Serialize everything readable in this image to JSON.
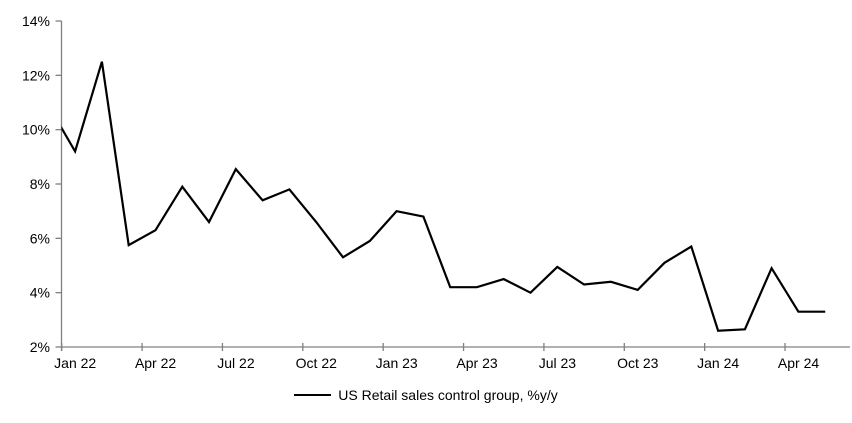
{
  "chart_data": {
    "type": "line",
    "title": "",
    "legend_position": "bottom",
    "grid": false,
    "background_color": "#ffffff",
    "axis_color": "#808080",
    "text_color": "#000000",
    "line_color": "#000000",
    "ylim": [
      2,
      14
    ],
    "y_axis": {
      "min": 2,
      "max": 14,
      "tick_step": 2,
      "tick_values": [
        14,
        12,
        10,
        8,
        6,
        4,
        2
      ],
      "tick_labels": [
        "14%",
        "12%",
        "10%",
        "8%",
        "6%",
        "4%",
        "2%"
      ]
    },
    "x_axis": {
      "tick_labels": [
        "Jan 22",
        "Apr 22",
        "Jul 22",
        "Oct 22",
        "Jan 23",
        "Apr 23",
        "Jul 23",
        "Oct 23",
        "Jan 24",
        "Apr 24"
      ]
    },
    "series": [
      {
        "name": "US Retail sales control group, %y/y",
        "points": [
          {
            "label": "Dec 21",
            "value": 10.9,
            "partially_clipped": true
          },
          {
            "label": "Jan 22",
            "value": 9.2
          },
          {
            "label": "Feb 22",
            "value": 12.5
          },
          {
            "label": "Mar 22",
            "value": 5.75
          },
          {
            "label": "Apr 22",
            "value": 6.3
          },
          {
            "label": "May 22",
            "value": 7.9
          },
          {
            "label": "Jun 22",
            "value": 6.6
          },
          {
            "label": "Jul 22",
            "value": 8.55
          },
          {
            "label": "Aug 22",
            "value": 7.4
          },
          {
            "label": "Sep 22",
            "value": 7.8
          },
          {
            "label": "Oct 22",
            "value": 6.6
          },
          {
            "label": "Nov 22",
            "value": 5.3
          },
          {
            "label": "Dec 22",
            "value": 5.9
          },
          {
            "label": "Jan 23",
            "value": 7.0
          },
          {
            "label": "Feb 23",
            "value": 6.8
          },
          {
            "label": "Mar 23",
            "value": 4.2
          },
          {
            "label": "Apr 23",
            "value": 4.2
          },
          {
            "label": "May 23",
            "value": 4.5
          },
          {
            "label": "Jun 23",
            "value": 4.0
          },
          {
            "label": "Jul 23",
            "value": 4.95
          },
          {
            "label": "Aug 23",
            "value": 4.3
          },
          {
            "label": "Sep 23",
            "value": 4.4
          },
          {
            "label": "Oct 23",
            "value": 4.1
          },
          {
            "label": "Nov 23",
            "value": 5.1
          },
          {
            "label": "Dec 23",
            "value": 5.7
          },
          {
            "label": "Jan 24",
            "value": 2.6
          },
          {
            "label": "Feb 24",
            "value": 2.65
          },
          {
            "label": "Mar 24",
            "value": 4.9
          },
          {
            "label": "Apr 24",
            "value": 3.3
          },
          {
            "label": "May 24",
            "value": 3.3
          }
        ]
      }
    ]
  },
  "legend": {
    "label": "US Retail sales control group, %y/y"
  }
}
